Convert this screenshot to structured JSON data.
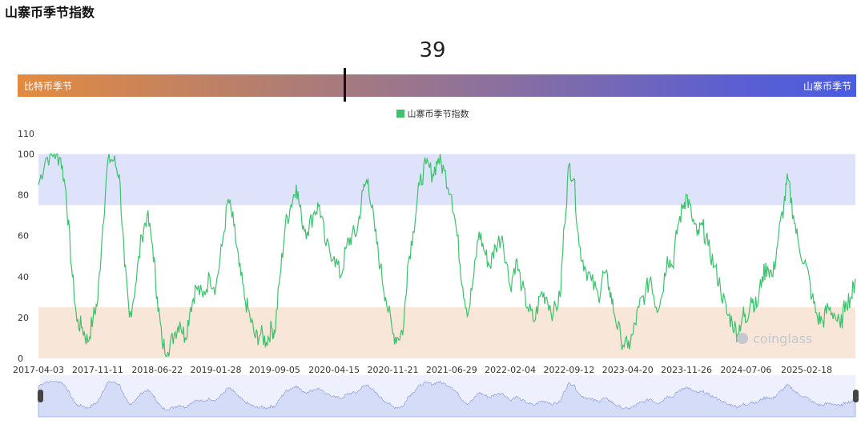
{
  "page": {
    "title": "山寨币季节指数"
  },
  "gauge": {
    "value": "39",
    "value_fraction": 0.39,
    "left_label": "比特币季节",
    "right_label": "山寨币季节"
  },
  "watermark": "coinglass",
  "chart_data": {
    "type": "line",
    "title": "",
    "legend": {
      "position": "top-center",
      "entries": [
        "山寨币季节指数"
      ]
    },
    "xlabel": "",
    "ylabel": "",
    "ylim": [
      0,
      110
    ],
    "yticks": [
      0,
      20,
      40,
      60,
      80,
      100,
      110
    ],
    "xtick_labels": [
      "2017-04-03",
      "2017-11-11",
      "2018-06-22",
      "2019-01-28",
      "2019-09-05",
      "2020-04-15",
      "2020-11-21",
      "2021-06-29",
      "2022-02-04",
      "2022-09-12",
      "2023-04-20",
      "2023-11-26",
      "2024-07-06",
      "2025-02-18"
    ],
    "bands": [
      {
        "from": 75,
        "to": 100,
        "color": "#dfe2fb"
      },
      {
        "from": 0,
        "to": 25,
        "color": "#f8e6d8"
      }
    ],
    "grid": false,
    "series": [
      {
        "name": "山寨币季节指数",
        "color": "#3dc26e",
        "points": [
          [
            "2017-04-03",
            85
          ],
          [
            "2017-05-01",
            98
          ],
          [
            "2017-06-01",
            100
          ],
          [
            "2017-06-25",
            98
          ],
          [
            "2017-07-15",
            82
          ],
          [
            "2017-08-05",
            45
          ],
          [
            "2017-08-25",
            18
          ],
          [
            "2017-09-15",
            15
          ],
          [
            "2017-10-05",
            8
          ],
          [
            "2017-10-25",
            20
          ],
          [
            "2017-11-11",
            28
          ],
          [
            "2017-11-30",
            65
          ],
          [
            "2017-12-20",
            98
          ],
          [
            "2018-01-10",
            97
          ],
          [
            "2018-01-31",
            90
          ],
          [
            "2018-02-20",
            45
          ],
          [
            "2018-03-10",
            20
          ],
          [
            "2018-04-01",
            35
          ],
          [
            "2018-04-25",
            60
          ],
          [
            "2018-05-15",
            70
          ],
          [
            "2018-06-05",
            55
          ],
          [
            "2018-06-22",
            30
          ],
          [
            "2018-07-10",
            8
          ],
          [
            "2018-08-01",
            3
          ],
          [
            "2018-08-25",
            12
          ],
          [
            "2018-09-15",
            18
          ],
          [
            "2018-10-05",
            10
          ],
          [
            "2018-10-25",
            25
          ],
          [
            "2018-11-15",
            35
          ],
          [
            "2018-12-10",
            30
          ],
          [
            "2019-01-05",
            40
          ],
          [
            "2019-01-28",
            35
          ],
          [
            "2019-02-20",
            55
          ],
          [
            "2019-03-15",
            78
          ],
          [
            "2019-04-05",
            65
          ],
          [
            "2019-04-25",
            45
          ],
          [
            "2019-05-15",
            30
          ],
          [
            "2019-06-05",
            20
          ],
          [
            "2019-06-25",
            10
          ],
          [
            "2019-07-15",
            12
          ],
          [
            "2019-08-05",
            8
          ],
          [
            "2019-08-25",
            15
          ],
          [
            "2019-09-05",
            12
          ],
          [
            "2019-09-25",
            40
          ],
          [
            "2019-10-15",
            65
          ],
          [
            "2019-11-05",
            75
          ],
          [
            "2019-11-25",
            85
          ],
          [
            "2019-12-15",
            68
          ],
          [
            "2020-01-05",
            62
          ],
          [
            "2020-02-01",
            72
          ],
          [
            "2020-02-20",
            75
          ],
          [
            "2020-03-15",
            55
          ],
          [
            "2020-04-15",
            50
          ],
          [
            "2020-05-10",
            40
          ],
          [
            "2020-06-01",
            55
          ],
          [
            "2020-06-20",
            60
          ],
          [
            "2020-07-10",
            62
          ],
          [
            "2020-08-01",
            82
          ],
          [
            "2020-08-20",
            88
          ],
          [
            "2020-09-15",
            62
          ],
          [
            "2020-10-05",
            45
          ],
          [
            "2020-10-25",
            30
          ],
          [
            "2020-11-21",
            12
          ],
          [
            "2020-12-10",
            10
          ],
          [
            "2020-12-31",
            15
          ],
          [
            "2021-01-15",
            45
          ],
          [
            "2021-02-05",
            62
          ],
          [
            "2021-03-01",
            85
          ],
          [
            "2021-03-25",
            95
          ],
          [
            "2021-04-20",
            90
          ],
          [
            "2021-05-10",
            98
          ],
          [
            "2021-06-01",
            92
          ],
          [
            "2021-06-29",
            80
          ],
          [
            "2021-07-20",
            60
          ],
          [
            "2021-08-10",
            35
          ],
          [
            "2021-08-30",
            22
          ],
          [
            "2021-09-20",
            40
          ],
          [
            "2021-10-10",
            62
          ],
          [
            "2021-10-31",
            52
          ],
          [
            "2021-11-20",
            45
          ],
          [
            "2021-12-10",
            55
          ],
          [
            "2022-01-05",
            60
          ],
          [
            "2022-02-04",
            35
          ],
          [
            "2022-02-25",
            48
          ],
          [
            "2022-03-20",
            35
          ],
          [
            "2022-04-10",
            25
          ],
          [
            "2022-05-05",
            18
          ],
          [
            "2022-05-30",
            32
          ],
          [
            "2022-06-20",
            30
          ],
          [
            "2022-07-15",
            22
          ],
          [
            "2022-08-10",
            30
          ],
          [
            "2022-08-25",
            65
          ],
          [
            "2022-09-12",
            95
          ],
          [
            "2022-09-30",
            88
          ],
          [
            "2022-10-20",
            55
          ],
          [
            "2022-11-10",
            45
          ],
          [
            "2022-12-05",
            38
          ],
          [
            "2022-12-31",
            30
          ],
          [
            "2023-01-20",
            42
          ],
          [
            "2023-02-10",
            35
          ],
          [
            "2023-03-01",
            22
          ],
          [
            "2023-03-25",
            10
          ],
          [
            "2023-04-20",
            5
          ],
          [
            "2023-05-10",
            12
          ],
          [
            "2023-06-01",
            25
          ],
          [
            "2023-06-25",
            32
          ],
          [
            "2023-07-15",
            40
          ],
          [
            "2023-08-05",
            25
          ],
          [
            "2023-08-25",
            30
          ],
          [
            "2023-09-15",
            50
          ],
          [
            "2023-10-05",
            45
          ],
          [
            "2023-10-25",
            65
          ],
          [
            "2023-11-15",
            75
          ],
          [
            "2023-11-26",
            80
          ],
          [
            "2023-12-15",
            70
          ],
          [
            "2024-01-05",
            60
          ],
          [
            "2024-01-25",
            65
          ],
          [
            "2024-02-15",
            55
          ],
          [
            "2024-03-10",
            45
          ],
          [
            "2024-04-01",
            35
          ],
          [
            "2024-04-25",
            22
          ],
          [
            "2024-05-15",
            18
          ],
          [
            "2024-06-05",
            12
          ],
          [
            "2024-06-25",
            22
          ],
          [
            "2024-07-06",
            18
          ],
          [
            "2024-07-25",
            30
          ],
          [
            "2024-08-15",
            25
          ],
          [
            "2024-09-05",
            40
          ],
          [
            "2024-09-25",
            45
          ],
          [
            "2024-10-15",
            40
          ],
          [
            "2024-11-05",
            60
          ],
          [
            "2024-11-25",
            75
          ],
          [
            "2024-12-10",
            88
          ],
          [
            "2024-12-31",
            70
          ],
          [
            "2025-01-20",
            55
          ],
          [
            "2025-02-18",
            45
          ],
          [
            "2025-03-10",
            30
          ],
          [
            "2025-03-31",
            20
          ],
          [
            "2025-04-20",
            18
          ],
          [
            "2025-05-10",
            25
          ],
          [
            "2025-06-01",
            22
          ],
          [
            "2025-06-25",
            15
          ],
          [
            "2025-07-15",
            28
          ],
          [
            "2025-08-05",
            30
          ],
          [
            "2025-08-20",
            39
          ]
        ]
      }
    ]
  }
}
